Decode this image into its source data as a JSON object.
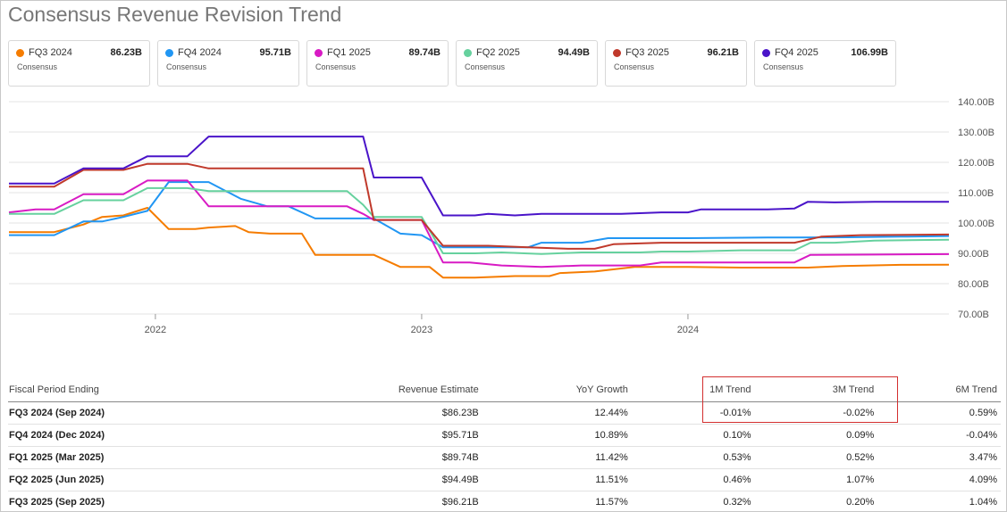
{
  "page": {
    "title": "Consensus Revenue Revision Trend"
  },
  "legend": [
    {
      "name": "FQ3 2024",
      "value": "86.23B",
      "sub": "Consensus",
      "color": "#f57c00"
    },
    {
      "name": "FQ4 2024",
      "value": "95.71B",
      "sub": "Consensus",
      "color": "#2196f3"
    },
    {
      "name": "FQ1 2025",
      "value": "89.74B",
      "sub": "Consensus",
      "color": "#d81bc4"
    },
    {
      "name": "FQ2 2025",
      "value": "94.49B",
      "sub": "Consensus",
      "color": "#66d19e"
    },
    {
      "name": "FQ3 2025",
      "value": "96.21B",
      "sub": "Consensus",
      "color": "#c0392b"
    },
    {
      "name": "FQ4 2025",
      "value": "106.99B",
      "sub": "Consensus",
      "color": "#4a14c9"
    }
  ],
  "chart_data": {
    "type": "line",
    "title": "Consensus Revenue Revision Trend",
    "xlabel": "",
    "ylabel": "",
    "xlim": [
      2021.45,
      2024.98
    ],
    "ylim": [
      70,
      140
    ],
    "y_ticks": [
      70,
      80,
      90,
      100,
      110,
      120,
      130,
      140
    ],
    "y_tick_labels": [
      "70.00B",
      "80.00B",
      "90.00B",
      "100.00B",
      "110.00B",
      "120.00B",
      "130.00B",
      "140.00B"
    ],
    "x_ticks": [
      2022.0,
      2023.0,
      2024.0
    ],
    "x_tick_labels": [
      "2022",
      "2023",
      "2024"
    ],
    "grid": "horizontal",
    "legend_placement": "top",
    "series": [
      {
        "name": "FQ3 2024",
        "color": "#f57c00",
        "x": [
          2021.45,
          2021.6,
          2021.62,
          2021.73,
          2021.8,
          2021.88,
          2021.97,
          2022.05,
          2022.15,
          2022.2,
          2022.3,
          2022.35,
          2022.43,
          2022.55,
          2022.6,
          2022.72,
          2022.82,
          2022.92,
          2023.03,
          2023.08,
          2023.2,
          2023.35,
          2023.48,
          2023.52,
          2023.65,
          2023.8,
          2024.0,
          2024.2,
          2024.45,
          2024.58,
          2024.8,
          2024.98
        ],
        "y": [
          97,
          97,
          97,
          99.5,
          102,
          102.5,
          105,
          98,
          98,
          98.5,
          99,
          97,
          96.5,
          96.5,
          89.5,
          89.5,
          89.5,
          85.5,
          85.5,
          82,
          82,
          82.5,
          82.5,
          83.5,
          84,
          85.5,
          85.5,
          85.3,
          85.3,
          85.8,
          86.2,
          86.23
        ]
      },
      {
        "name": "FQ4 2024",
        "color": "#2196f3",
        "x": [
          2021.45,
          2021.6,
          2021.62,
          2021.73,
          2021.8,
          2021.88,
          2021.97,
          2022.05,
          2022.12,
          2022.2,
          2022.32,
          2022.42,
          2022.5,
          2022.6,
          2022.72,
          2022.78,
          2022.82,
          2022.92,
          2023.0,
          2023.08,
          2023.4,
          2023.45,
          2023.6,
          2023.7,
          2024.0,
          2024.3,
          2024.6,
          2024.8,
          2024.98
        ],
        "y": [
          96,
          96,
          96,
          100.5,
          100.5,
          102,
          104,
          113.5,
          113.5,
          113.5,
          108,
          105.5,
          105.5,
          101.5,
          101.5,
          101.5,
          101.5,
          96.5,
          96,
          92,
          92,
          93.5,
          93.5,
          95,
          95,
          95.2,
          95.3,
          95.5,
          95.71
        ]
      },
      {
        "name": "FQ1 2025",
        "color": "#d81bc4",
        "x": [
          2021.45,
          2021.55,
          2021.62,
          2021.73,
          2021.8,
          2021.88,
          2021.97,
          2022.05,
          2022.12,
          2022.2,
          2022.32,
          2022.5,
          2022.6,
          2022.72,
          2022.78,
          2022.82,
          2022.92,
          2023.0,
          2023.08,
          2023.18,
          2023.3,
          2023.45,
          2023.6,
          2023.82,
          2023.9,
          2024.0,
          2024.2,
          2024.4,
          2024.46,
          2024.7,
          2024.98
        ],
        "y": [
          103.5,
          104.5,
          104.5,
          109.5,
          109.5,
          109.5,
          114,
          114,
          114,
          105.5,
          105.5,
          105.5,
          105.5,
          105.5,
          103,
          101,
          101,
          101,
          87,
          87,
          86,
          85.5,
          86,
          86,
          87,
          87,
          87,
          87,
          89.5,
          89.6,
          89.74
        ]
      },
      {
        "name": "FQ2 2025",
        "color": "#66d19e",
        "x": [
          2021.45,
          2021.6,
          2021.62,
          2021.73,
          2021.8,
          2021.88,
          2021.97,
          2022.05,
          2022.12,
          2022.2,
          2022.32,
          2022.5,
          2022.6,
          2022.72,
          2022.78,
          2022.82,
          2022.92,
          2023.0,
          2023.08,
          2023.2,
          2023.3,
          2023.45,
          2023.6,
          2023.82,
          2023.9,
          2024.0,
          2024.2,
          2024.4,
          2024.46,
          2024.55,
          2024.7,
          2024.98
        ],
        "y": [
          103,
          103,
          103,
          107.5,
          107.5,
          107.5,
          111.5,
          111.5,
          111.5,
          110.5,
          110.5,
          110.5,
          110.5,
          110.5,
          106,
          102,
          102,
          102,
          90,
          90,
          90.3,
          89.8,
          90.3,
          90.3,
          90.6,
          90.6,
          91,
          91,
          93.5,
          93.5,
          94.2,
          94.49
        ]
      },
      {
        "name": "FQ3 2025",
        "color": "#c0392b",
        "x": [
          2021.45,
          2021.6,
          2021.62,
          2021.73,
          2021.8,
          2021.88,
          2021.97,
          2022.05,
          2022.12,
          2022.2,
          2022.32,
          2022.5,
          2022.6,
          2022.72,
          2022.78,
          2022.82,
          2022.92,
          2023.0,
          2023.08,
          2023.25,
          2023.4,
          2023.55,
          2023.65,
          2023.72,
          2023.9,
          2024.0,
          2024.2,
          2024.4,
          2024.5,
          2024.65,
          2024.98
        ],
        "y": [
          112,
          112,
          112,
          117.5,
          117.5,
          117.5,
          119.5,
          119.5,
          119.5,
          118,
          118,
          118,
          118,
          118,
          118,
          101,
          101,
          101,
          92.5,
          92.5,
          92,
          91.5,
          91.5,
          93,
          93.5,
          93.5,
          93.5,
          93.5,
          95.5,
          96,
          96.21
        ]
      },
      {
        "name": "FQ4 2025",
        "color": "#4a14c9",
        "x": [
          2021.45,
          2021.6,
          2021.62,
          2021.73,
          2021.8,
          2021.88,
          2021.97,
          2022.05,
          2022.12,
          2022.2,
          2022.32,
          2022.5,
          2022.6,
          2022.72,
          2022.78,
          2022.82,
          2022.92,
          2023.0,
          2023.08,
          2023.2,
          2023.25,
          2023.35,
          2023.45,
          2023.65,
          2023.75,
          2023.9,
          2024.0,
          2024.05,
          2024.3,
          2024.4,
          2024.45,
          2024.55,
          2024.7,
          2024.85,
          2024.98
        ],
        "y": [
          113,
          113,
          113,
          118,
          118,
          118,
          122,
          122,
          122,
          128.5,
          128.5,
          128.5,
          128.5,
          128.5,
          128.5,
          115,
          115,
          115,
          102.5,
          102.5,
          103,
          102.5,
          103,
          103,
          103,
          103.5,
          103.5,
          104.5,
          104.5,
          104.8,
          107,
          106.8,
          107,
          107,
          106.99
        ]
      }
    ]
  },
  "table": {
    "headers": [
      "Fiscal Period Ending",
      "Revenue Estimate",
      "YoY Growth",
      "1M Trend",
      "3M Trend",
      "6M Trend"
    ],
    "rows": [
      [
        "FQ3 2024 (Sep 2024)",
        "$86.23B",
        "12.44%",
        "-0.01%",
        "-0.02%",
        "0.59%"
      ],
      [
        "FQ4 2024 (Dec 2024)",
        "$95.71B",
        "10.89%",
        "0.10%",
        "0.09%",
        "-0.04%"
      ],
      [
        "FQ1 2025 (Mar 2025)",
        "$89.74B",
        "11.42%",
        "0.53%",
        "0.52%",
        "3.47%"
      ],
      [
        "FQ2 2025 (Jun 2025)",
        "$94.49B",
        "11.51%",
        "0.46%",
        "1.07%",
        "4.09%"
      ],
      [
        "FQ3 2025 (Sep 2025)",
        "$96.21B",
        "11.57%",
        "0.32%",
        "0.20%",
        "1.04%"
      ]
    ]
  },
  "colors": {
    "positive": "#2e7d32",
    "negative": "#c62828",
    "highlight": "#d32f2f"
  }
}
